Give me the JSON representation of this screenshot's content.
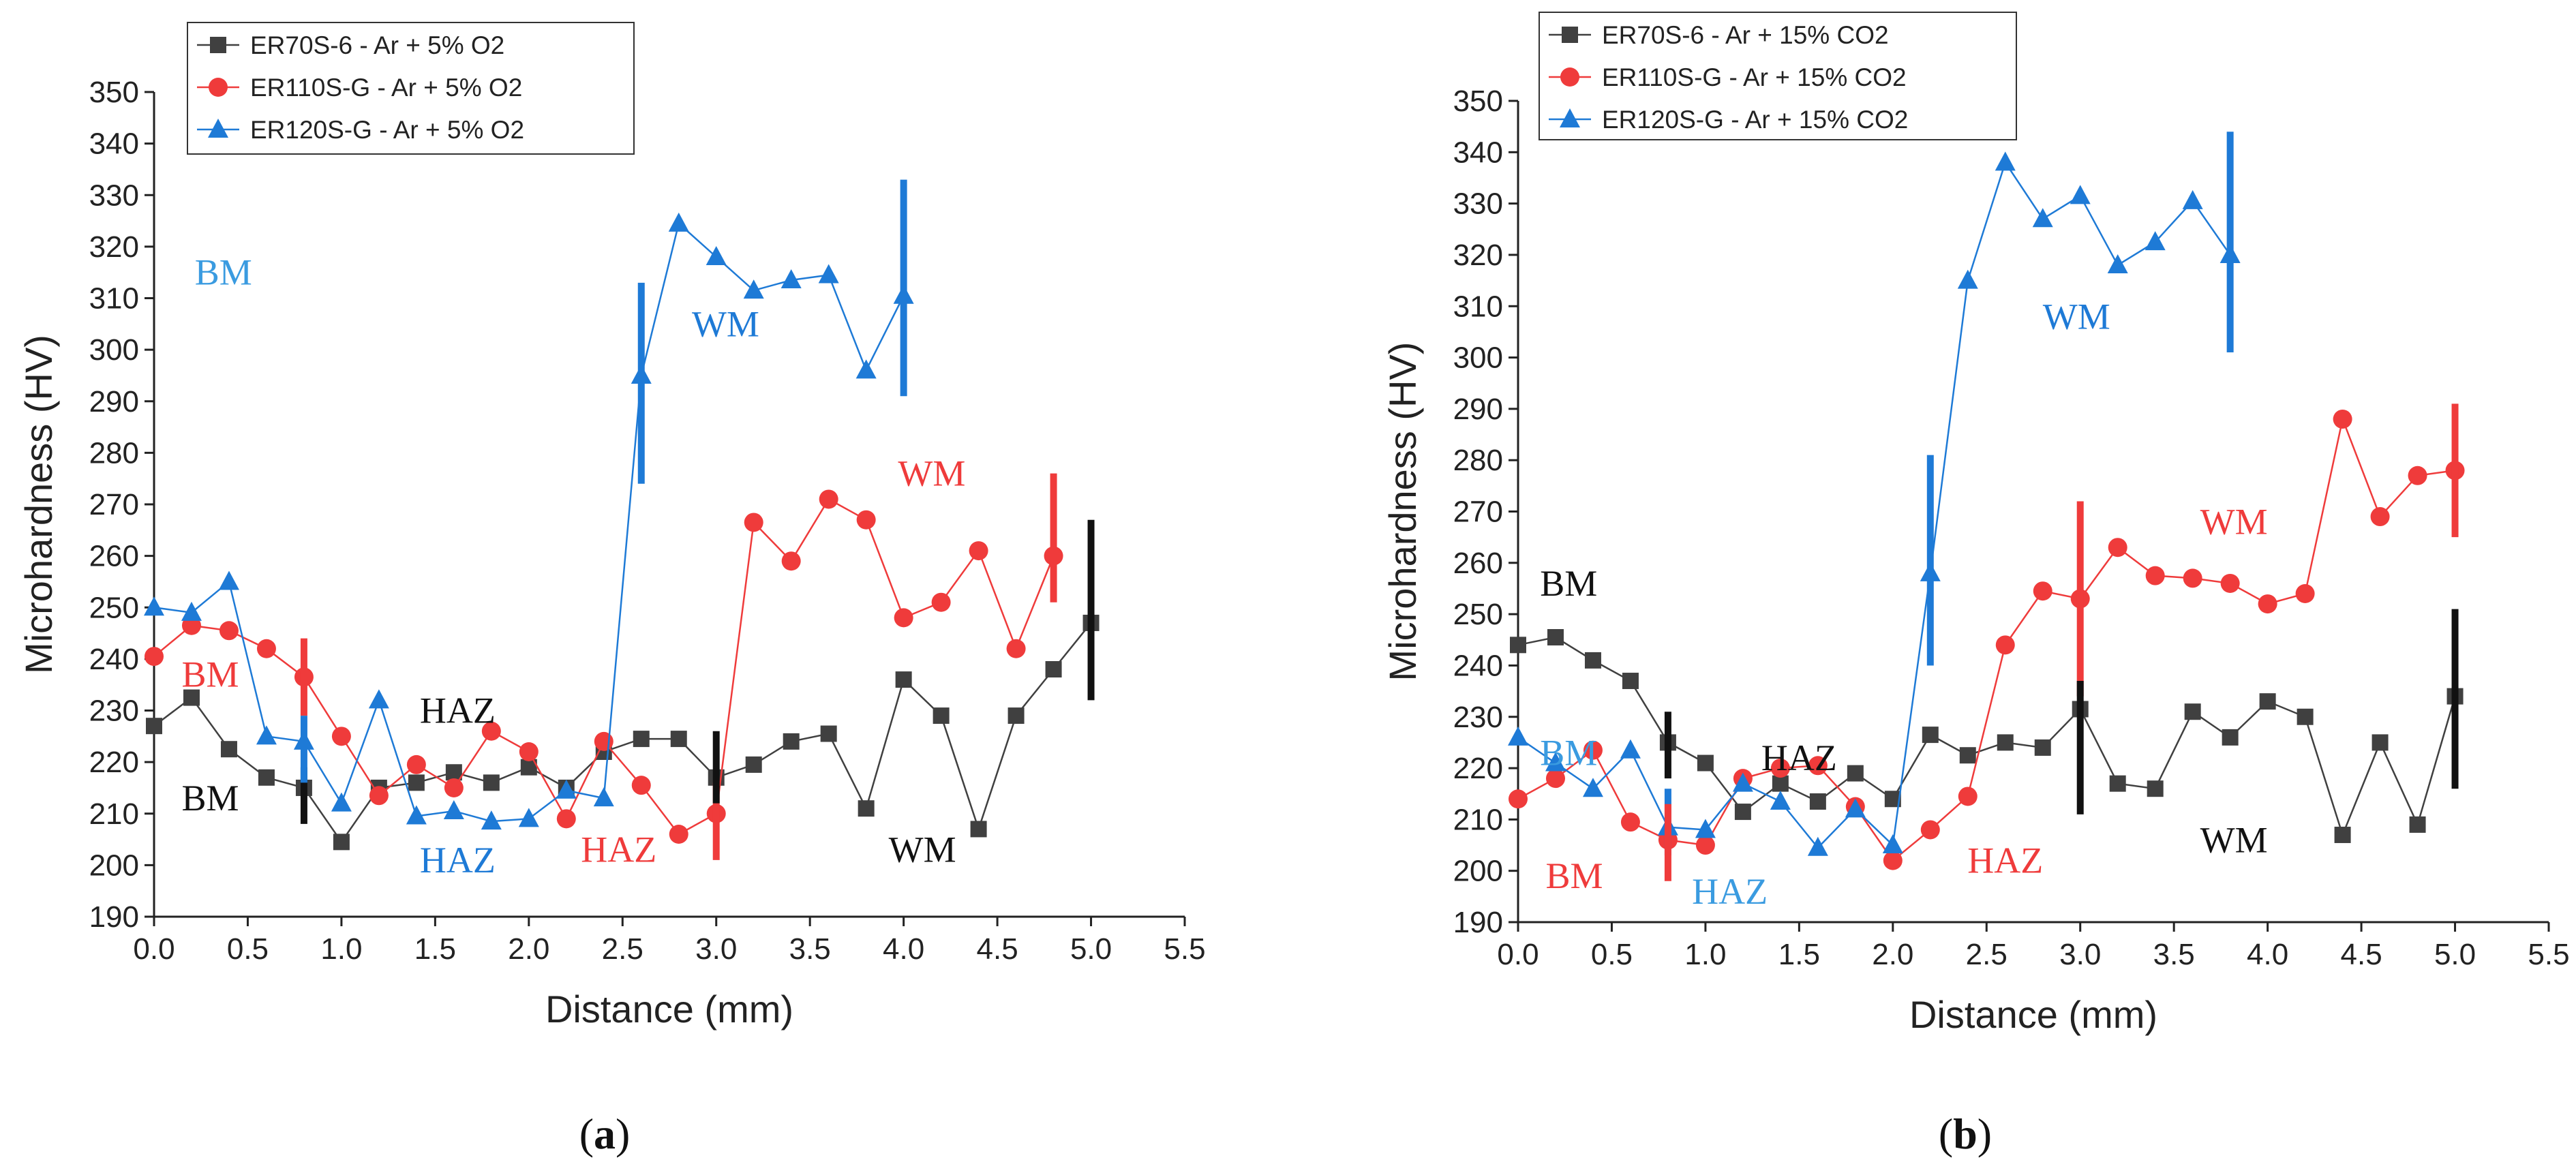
{
  "chart_data": [
    {
      "type": "line",
      "panel": "a",
      "caption": {
        "open": "(",
        "letter": "a",
        "close": ")"
      },
      "xlabel": "Distance (mm)",
      "ylabel": "Microhardness (HV)",
      "xlim": [
        0,
        5.5
      ],
      "ylim": [
        190,
        350
      ],
      "xticks": [
        0,
        0.5,
        1.0,
        1.5,
        2.0,
        2.5,
        3.0,
        3.5,
        4.0,
        4.5,
        5.0,
        5.5
      ],
      "xtick_labels": [
        "0.0",
        "0.5",
        "1.0",
        "1.5",
        "2.0",
        "2.5",
        "3.0",
        "3.5",
        "4.0",
        "4.5",
        "5.0",
        "5.5"
      ],
      "yticks": [
        190,
        200,
        210,
        220,
        230,
        240,
        250,
        260,
        270,
        280,
        290,
        300,
        310,
        320,
        330,
        340,
        350
      ],
      "legend_position": "top-left",
      "series": [
        {
          "name": "ER70S-6 - Ar + 5% O2",
          "color": "#404040",
          "marker": "square",
          "x": [
            0,
            0.2,
            0.4,
            0.6,
            0.8,
            1.0,
            1.2,
            1.4,
            1.6,
            1.8,
            2.0,
            2.2,
            2.4,
            2.6,
            2.8,
            3.0,
            3.2,
            3.4,
            3.6,
            3.8,
            4.0,
            4.2,
            4.4,
            4.6,
            4.8,
            5.0
          ],
          "values": [
            227,
            232.5,
            222.5,
            217,
            215,
            204.5,
            215,
            216,
            218,
            216,
            219,
            215,
            222,
            224.5,
            224.5,
            217,
            219.5,
            224,
            225.5,
            211,
            236,
            229,
            207,
            229,
            238,
            247
          ]
        },
        {
          "name": "ER110S-G - Ar + 5% O2",
          "color": "#ef3b3b",
          "marker": "circle",
          "x": [
            0,
            0.2,
            0.4,
            0.6,
            0.8,
            1.0,
            1.2,
            1.4,
            1.6,
            1.8,
            2.0,
            2.2,
            2.4,
            2.6,
            2.8,
            3.0,
            3.2,
            3.4,
            3.6,
            3.8,
            4.0,
            4.2,
            4.4,
            4.6,
            4.8
          ],
          "values": [
            240.5,
            246.5,
            245.5,
            242,
            236.5,
            225,
            213.5,
            219.5,
            215,
            226,
            222,
            209,
            224,
            215.5,
            206,
            210,
            266.5,
            259,
            271,
            267,
            248,
            251,
            261,
            242,
            260
          ]
        },
        {
          "name": "ER120S-G - Ar + 5% O2",
          "color": "#1e7ad6",
          "marker": "triangle",
          "x": [
            0,
            0.2,
            0.4,
            0.6,
            0.8,
            1.0,
            1.2,
            1.4,
            1.6,
            1.8,
            2.0,
            2.2,
            2.4,
            2.6,
            2.8,
            3.0,
            3.2,
            3.4,
            3.6,
            3.8,
            4.0
          ],
          "values": [
            250,
            249,
            255,
            225,
            224,
            212,
            232,
            209.5,
            210.5,
            208.5,
            209,
            214.5,
            213,
            295,
            324.5,
            318,
            311.5,
            313.5,
            314.5,
            296,
            310.5
          ]
        }
      ],
      "error_bars": [
        {
          "color": "#1e7ad6",
          "x": 2.6,
          "low": 274,
          "high": 313
        },
        {
          "color": "#1e7ad6",
          "x": 4.0,
          "low": 291,
          "high": 333
        },
        {
          "color": "#ef3b3b",
          "x": 0.8,
          "low": 229,
          "high": 244
        },
        {
          "color": "#ef3b3b",
          "x": 3.0,
          "low": 201,
          "high": 216
        },
        {
          "color": "#ef3b3b",
          "x": 4.8,
          "low": 251,
          "high": 276
        },
        {
          "color": "#111111",
          "x": 0.8,
          "low": 208,
          "high": 219
        },
        {
          "color": "#111111",
          "x": 3.0,
          "low": 212,
          "high": 226
        },
        {
          "color": "#111111",
          "x": 5.0,
          "low": 232,
          "high": 267
        },
        {
          "color": "#1e7ad6",
          "x": 0.8,
          "low": 216,
          "high": 229
        }
      ],
      "annotations": [
        {
          "text": "BM",
          "color": "#3a9be0",
          "x": 0.37,
          "y": 315
        },
        {
          "text": "BM",
          "color": "#ef3b3b",
          "x": 0.3,
          "y": 237
        },
        {
          "text": "BM",
          "color": "#111111",
          "x": 0.3,
          "y": 213
        },
        {
          "text": "HAZ",
          "color": "#111111",
          "x": 1.62,
          "y": 230
        },
        {
          "text": "HAZ",
          "color": "#1e7ad6",
          "x": 1.62,
          "y": 201
        },
        {
          "text": "HAZ",
          "color": "#ef3b3b",
          "x": 2.48,
          "y": 203
        },
        {
          "text": "WM",
          "color": "#1e7ad6",
          "x": 3.05,
          "y": 305
        },
        {
          "text": "WM",
          "color": "#ef3b3b",
          "x": 4.15,
          "y": 276
        },
        {
          "text": "WM",
          "color": "#111111",
          "x": 4.1,
          "y": 203
        }
      ]
    },
    {
      "type": "line",
      "panel": "b",
      "caption": {
        "open": "(",
        "letter": "b",
        "close": ")"
      },
      "xlabel": "Distance (mm)",
      "ylabel": "Microhardness (HV)",
      "xlim": [
        0,
        5.5
      ],
      "ylim": [
        190,
        350
      ],
      "xticks": [
        0,
        0.5,
        1.0,
        1.5,
        2.0,
        2.5,
        3.0,
        3.5,
        4.0,
        4.5,
        5.0,
        5.5
      ],
      "xtick_labels": [
        "0.0",
        "0.5",
        "1.0",
        "1.5",
        "2.0",
        "2.5",
        "3.0",
        "3.5",
        "4.0",
        "4.5",
        "5.0",
        "5.5"
      ],
      "yticks": [
        190,
        200,
        210,
        220,
        230,
        240,
        250,
        260,
        270,
        280,
        290,
        300,
        310,
        320,
        330,
        340,
        350
      ],
      "legend_position": "top-left",
      "series": [
        {
          "name": "ER70S-6 - Ar + 15% CO2",
          "color": "#404040",
          "marker": "square",
          "x": [
            0,
            0.2,
            0.4,
            0.6,
            0.8,
            1.0,
            1.2,
            1.4,
            1.6,
            1.8,
            2.0,
            2.2,
            2.4,
            2.6,
            2.8,
            3.0,
            3.2,
            3.4,
            3.6,
            3.8,
            4.0,
            4.2,
            4.4,
            4.6,
            4.8,
            5.0
          ],
          "values": [
            244,
            245.5,
            241,
            237,
            225,
            221,
            211.5,
            217,
            213.5,
            219,
            214,
            226.5,
            222.5,
            225,
            224,
            231.5,
            217,
            216,
            231,
            226,
            233,
            230,
            207,
            225,
            209,
            234
          ]
        },
        {
          "name": "ER110S-G - Ar + 15% CO2",
          "color": "#ef3b3b",
          "marker": "circle",
          "x": [
            0,
            0.2,
            0.4,
            0.6,
            0.8,
            1.0,
            1.2,
            1.4,
            1.6,
            1.8,
            2.0,
            2.2,
            2.4,
            2.6,
            2.8,
            3.0,
            3.2,
            3.4,
            3.6,
            3.8,
            4.0,
            4.2,
            4.4,
            4.6,
            4.8,
            5.0
          ],
          "values": [
            214,
            218,
            223.5,
            209.5,
            206,
            205,
            218,
            220,
            220.5,
            212.5,
            202,
            208,
            214.5,
            244,
            254.5,
            253,
            263,
            257.5,
            257,
            256,
            252,
            254,
            288,
            269,
            277,
            278
          ]
        },
        {
          "name": "ER120S-G - Ar + 15% CO2",
          "color": "#1e7ad6",
          "marker": "triangle",
          "x": [
            0,
            0.2,
            0.4,
            0.6,
            0.8,
            1.0,
            1.2,
            1.4,
            1.6,
            1.8,
            2.0,
            2.2,
            2.4,
            2.6,
            2.8,
            3.0,
            3.2,
            3.4,
            3.6,
            3.8
          ],
          "values": [
            226,
            221,
            216,
            223.5,
            208.5,
            208,
            217,
            213.5,
            204.5,
            212,
            205,
            258,
            315,
            338,
            327,
            331.5,
            318,
            322.5,
            330.5,
            320
          ]
        }
      ],
      "error_bars": [
        {
          "color": "#1e7ad6",
          "x": 2.2,
          "low": 240,
          "high": 281
        },
        {
          "color": "#1e7ad6",
          "x": 3.8,
          "low": 301,
          "high": 344
        },
        {
          "color": "#1e7ad6",
          "x": 0.8,
          "low": 203,
          "high": 216
        },
        {
          "color": "#ef3b3b",
          "x": 0.8,
          "low": 198,
          "high": 213
        },
        {
          "color": "#ef3b3b",
          "x": 3.0,
          "low": 234,
          "high": 272
        },
        {
          "color": "#ef3b3b",
          "x": 5.0,
          "low": 265,
          "high": 291
        },
        {
          "color": "#111111",
          "x": 0.8,
          "low": 218,
          "high": 231
        },
        {
          "color": "#111111",
          "x": 3.0,
          "low": 211,
          "high": 237
        },
        {
          "color": "#111111",
          "x": 5.0,
          "low": 216,
          "high": 251
        }
      ],
      "annotations": [
        {
          "text": "BM",
          "color": "#111111",
          "x": 0.27,
          "y": 256
        },
        {
          "text": "BM",
          "color": "#3a9be0",
          "x": 0.27,
          "y": 223
        },
        {
          "text": "BM",
          "color": "#ef3b3b",
          "x": 0.3,
          "y": 199
        },
        {
          "text": "HAZ",
          "color": "#111111",
          "x": 1.5,
          "y": 222
        },
        {
          "text": "HAZ",
          "color": "#3a9be0",
          "x": 1.13,
          "y": 196
        },
        {
          "text": "HAZ",
          "color": "#ef3b3b",
          "x": 2.6,
          "y": 202
        },
        {
          "text": "WM",
          "color": "#1e7ad6",
          "x": 2.98,
          "y": 308
        },
        {
          "text": "WM",
          "color": "#ef3b3b",
          "x": 3.82,
          "y": 268
        },
        {
          "text": "WM",
          "color": "#111111",
          "x": 3.82,
          "y": 206
        }
      ]
    }
  ]
}
